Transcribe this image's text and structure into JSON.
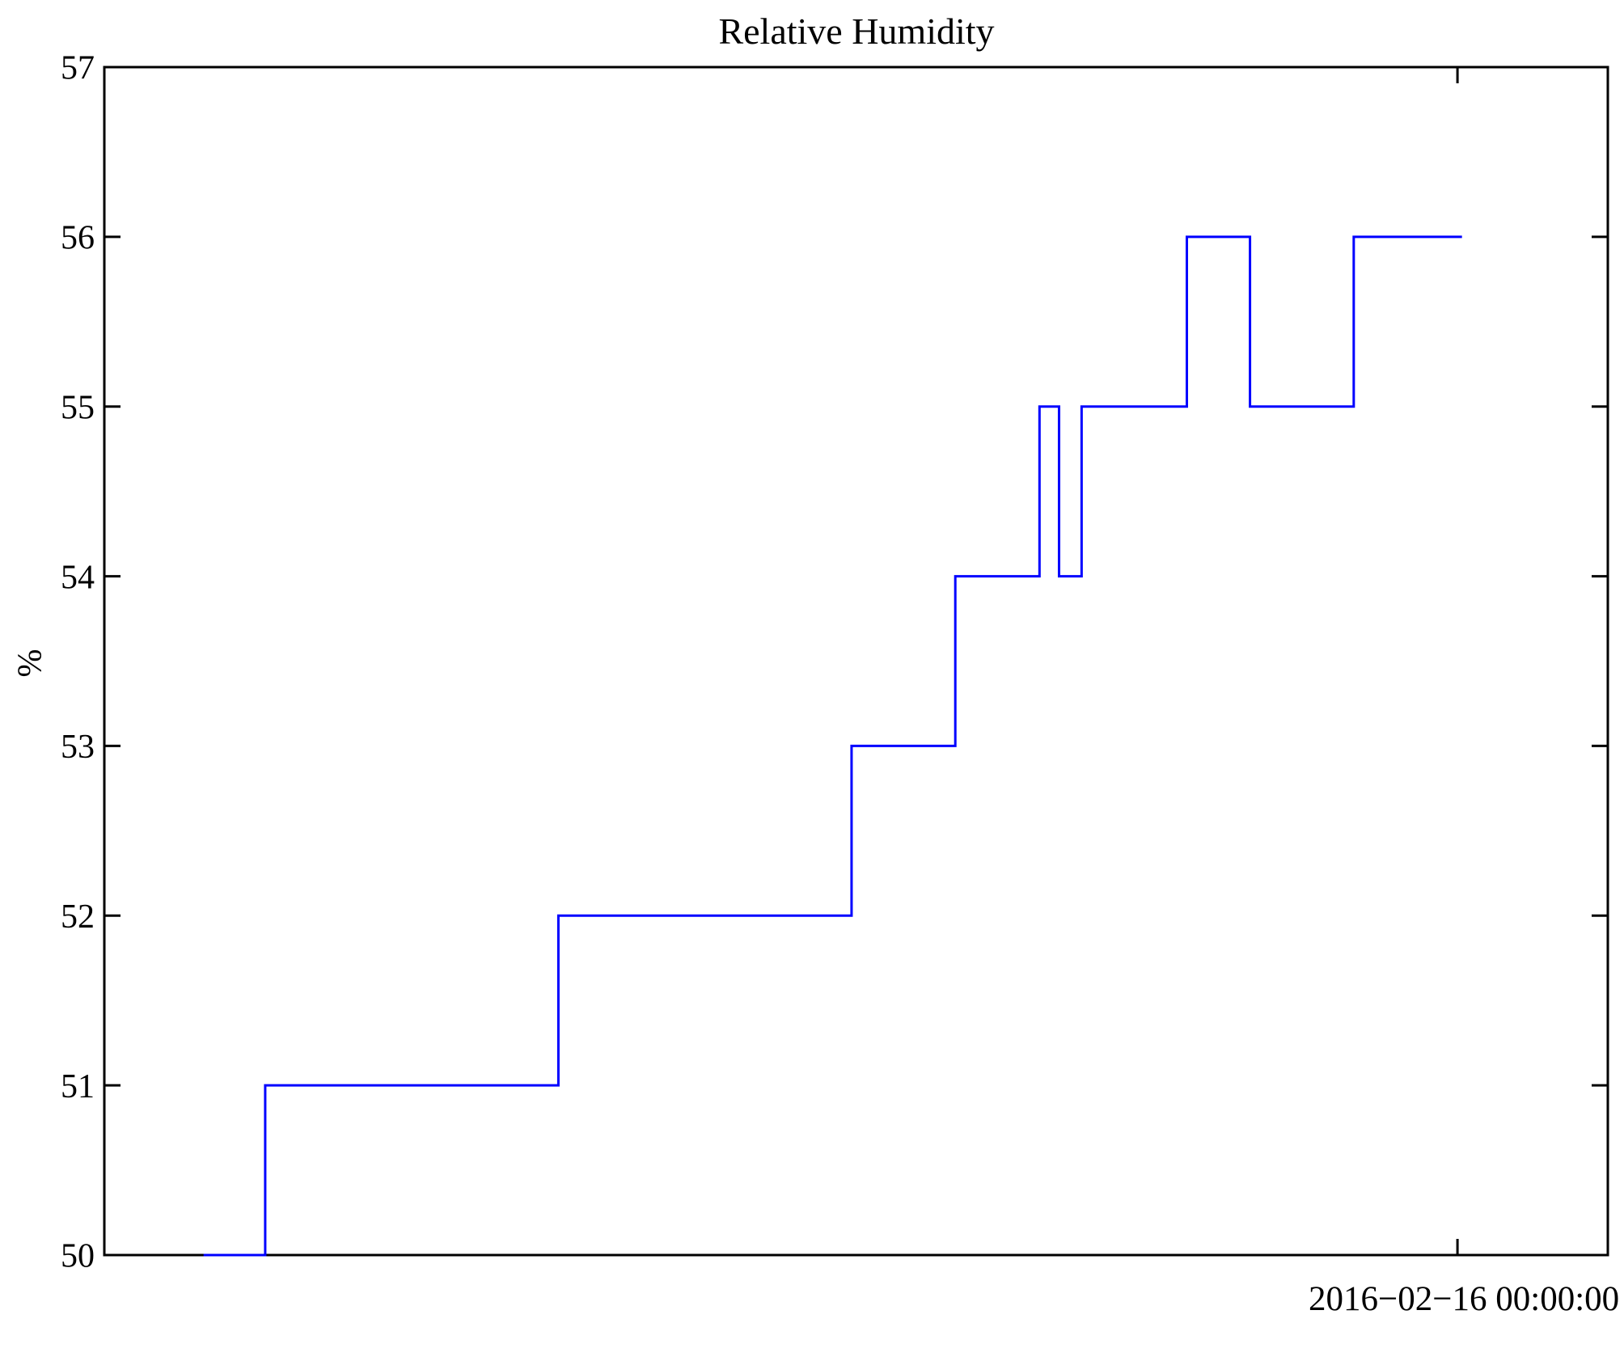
{
  "figure": {
    "background_color": "#FFFFFF",
    "frame_color": "#000000",
    "text_color": "#000000"
  },
  "chart_data": {
    "type": "line",
    "line_style": "step",
    "title": "Relative Humidity",
    "xlabel": "",
    "ylabel": "%",
    "ylim": [
      50,
      57
    ],
    "yticks": [
      50,
      51,
      52,
      53,
      54,
      55,
      56,
      57
    ],
    "grid": false,
    "legend": null,
    "x_ticks": [
      {
        "label": "2016−02−16 00:00:00",
        "x_fraction": 0.9
      }
    ],
    "series": [
      {
        "name": "Relative Humidity",
        "color": "#0000FF",
        "x_unit": "fraction_of_x_axis",
        "y_unit": "percent",
        "points": [
          [
            0.066,
            50
          ],
          [
            0.107,
            50
          ],
          [
            0.107,
            51
          ],
          [
            0.302,
            51
          ],
          [
            0.302,
            52
          ],
          [
            0.497,
            52
          ],
          [
            0.497,
            53
          ],
          [
            0.566,
            53
          ],
          [
            0.566,
            54
          ],
          [
            0.622,
            54
          ],
          [
            0.622,
            55
          ],
          [
            0.635,
            55
          ],
          [
            0.635,
            54
          ],
          [
            0.65,
            54
          ],
          [
            0.65,
            55
          ],
          [
            0.72,
            55
          ],
          [
            0.72,
            56
          ],
          [
            0.762,
            56
          ],
          [
            0.762,
            55
          ],
          [
            0.831,
            55
          ],
          [
            0.831,
            56
          ],
          [
            0.903,
            56
          ]
        ]
      }
    ]
  }
}
